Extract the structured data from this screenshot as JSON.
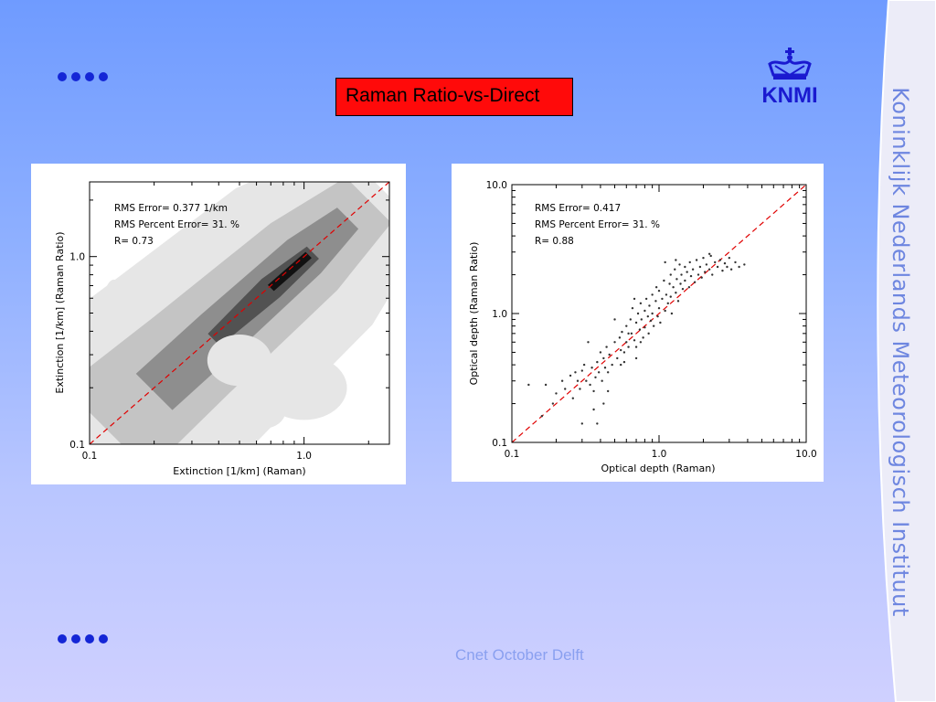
{
  "slide": {
    "title": "Raman Ratio-vs-Direct",
    "footer": "Cnet October Delft",
    "sidebar_text": "Koninklijk Nederlands Meteorologisch Instituut",
    "logo_text": "KNMI",
    "logo_icon": "crown-icon",
    "colors": {
      "title_box": "#ff0a0a",
      "bullets": "#1426d6",
      "sidebar_text": "#6e86e0",
      "footer": "#8aa0f0",
      "logo": "#1a1ad0"
    }
  },
  "chart_data": [
    {
      "type": "heatmap",
      "xlabel": "Extinction [1/km] (Raman)",
      "ylabel": "Extinction [1/km] (Raman Ratio)",
      "xscale": "log",
      "yscale": "log",
      "xlim": [
        0.1,
        2.5
      ],
      "ylim": [
        0.1,
        2.5
      ],
      "xticks": [
        0.1,
        1.0
      ],
      "xtick_labels": [
        "0.1",
        "1.0"
      ],
      "yticks": [
        0.1,
        1.0
      ],
      "ytick_labels": [
        "0.1",
        "1.0"
      ],
      "annotations": [
        "RMS Error=   0.377 1/km",
        "RMS Percent Error=      31. %",
        "R=  0.73"
      ],
      "reference_line": {
        "style": "dashed",
        "color": "#e00000",
        "from": [
          0.1,
          0.1
        ],
        "to": [
          2.5,
          2.5
        ]
      },
      "contour_levels": [
        {
          "shade": "#e6e6e6",
          "center": [
            [
              0.1,
              0.1
            ],
            [
              0.3,
              0.3
            ],
            [
              1.0,
              1.0
            ],
            [
              2.3,
              2.3
            ]
          ],
          "half_width_decades": [
            0.55,
            0.5,
            0.45,
            0.3
          ]
        },
        {
          "shade": "#c4c4c4",
          "center": [
            [
              0.12,
              0.12
            ],
            [
              0.3,
              0.3
            ],
            [
              1.0,
              1.0
            ],
            [
              2.0,
              2.0
            ]
          ],
          "half_width_decades": [
            0.28,
            0.25,
            0.22,
            0.15
          ]
        },
        {
          "shade": "#8e8e8e",
          "center": [
            [
              0.2,
              0.19
            ],
            [
              0.4,
              0.39
            ],
            [
              1.0,
              1.0
            ],
            [
              1.6,
              1.6
            ]
          ],
          "half_width_decades": [
            0.12,
            0.12,
            0.11,
            0.07
          ]
        },
        {
          "shade": "#525252",
          "center": [
            [
              0.38,
              0.36
            ],
            [
              0.7,
              0.68
            ],
            [
              1.1,
              1.05
            ]
          ],
          "half_width_decades": [
            0.04,
            0.06,
            0.04
          ]
        },
        {
          "shade": "#111111",
          "center": [
            [
              0.7,
              0.68
            ],
            [
              1.05,
              1.02
            ]
          ],
          "half_width_decades": [
            0.02,
            0.02
          ]
        }
      ],
      "extra_light_blobs": [
        {
          "x": 0.5,
          "y": 0.28,
          "rx_decades": 0.15,
          "ry_decades": 0.12
        },
        {
          "x": 1.0,
          "y": 0.2,
          "rx_decades": 0.2,
          "ry_decades": 0.15
        },
        {
          "x": 0.65,
          "y": 0.15,
          "rx_decades": 0.1,
          "ry_decades": 0.08
        },
        {
          "x": 0.13,
          "y": 0.55,
          "rx_decades": 0.05,
          "ry_decades": 0.12
        }
      ]
    },
    {
      "type": "scatter",
      "xlabel": "Optical depth (Raman)",
      "ylabel": "Optical depth (Raman Ratio)",
      "xscale": "log",
      "yscale": "log",
      "xlim": [
        0.1,
        10.0
      ],
      "ylim": [
        0.1,
        10.0
      ],
      "xticks": [
        0.1,
        1.0,
        10.0
      ],
      "xtick_labels": [
        "0.1",
        "1.0",
        "10.0"
      ],
      "yticks": [
        0.1,
        1.0,
        10.0
      ],
      "ytick_labels": [
        "0.1",
        "1.0",
        "10.0"
      ],
      "annotations": [
        "RMS Error=    0.417",
        "RMS Percent Error=      31. %",
        "R=   0.88"
      ],
      "reference_line": {
        "style": "dashed",
        "color": "#e00000",
        "from": [
          0.1,
          0.1
        ],
        "to": [
          10.0,
          10.0
        ]
      },
      "points": [
        [
          0.13,
          0.28
        ],
        [
          0.16,
          0.16
        ],
        [
          0.17,
          0.28
        ],
        [
          0.19,
          0.2
        ],
        [
          0.2,
          0.24
        ],
        [
          0.22,
          0.3
        ],
        [
          0.23,
          0.26
        ],
        [
          0.25,
          0.33
        ],
        [
          0.26,
          0.22
        ],
        [
          0.27,
          0.35
        ],
        [
          0.28,
          0.3
        ],
        [
          0.29,
          0.26
        ],
        [
          0.3,
          0.36
        ],
        [
          0.3,
          0.14
        ],
        [
          0.31,
          0.4
        ],
        [
          0.32,
          0.3
        ],
        [
          0.33,
          0.6
        ],
        [
          0.34,
          0.28
        ],
        [
          0.35,
          0.38
        ],
        [
          0.36,
          0.25
        ],
        [
          0.37,
          0.32
        ],
        [
          0.38,
          0.14
        ],
        [
          0.38,
          0.42
        ],
        [
          0.39,
          0.35
        ],
        [
          0.4,
          0.5
        ],
        [
          0.41,
          0.3
        ],
        [
          0.42,
          0.45
        ],
        [
          0.43,
          0.38
        ],
        [
          0.44,
          0.55
        ],
        [
          0.45,
          0.25
        ],
        [
          0.46,
          0.48
        ],
        [
          0.48,
          0.4
        ],
        [
          0.5,
          0.6
        ],
        [
          0.52,
          0.45
        ],
        [
          0.54,
          0.65
        ],
        [
          0.55,
          0.52
        ],
        [
          0.56,
          0.72
        ],
        [
          0.58,
          0.5
        ],
        [
          0.6,
          0.8
        ],
        [
          0.6,
          0.6
        ],
        [
          0.62,
          0.55
        ],
        [
          0.64,
          0.9
        ],
        [
          0.65,
          0.7
        ],
        [
          0.66,
          1.1
        ],
        [
          0.68,
          0.62
        ],
        [
          0.7,
          0.85
        ],
        [
          0.7,
          0.55
        ],
        [
          0.72,
          1.0
        ],
        [
          0.74,
          0.75
        ],
        [
          0.75,
          1.2
        ],
        [
          0.76,
          0.9
        ],
        [
          0.78,
          0.65
        ],
        [
          0.8,
          1.05
        ],
        [
          0.8,
          0.78
        ],
        [
          0.82,
          1.3
        ],
        [
          0.84,
          0.95
        ],
        [
          0.85,
          0.7
        ],
        [
          0.86,
          1.15
        ],
        [
          0.88,
          0.88
        ],
        [
          0.9,
          1.4
        ],
        [
          0.9,
          1.0
        ],
        [
          0.92,
          0.8
        ],
        [
          0.95,
          1.25
        ],
        [
          0.96,
          1.6
        ],
        [
          0.98,
          0.95
        ],
        [
          1.0,
          1.1
        ],
        [
          1.0,
          1.5
        ],
        [
          1.02,
          0.85
        ],
        [
          1.05,
          1.3
        ],
        [
          1.08,
          1.8
        ],
        [
          1.1,
          1.05
        ],
        [
          1.12,
          1.4
        ],
        [
          1.15,
          1.2
        ],
        [
          1.18,
          1.7
        ],
        [
          1.2,
          2.0
        ],
        [
          1.2,
          1.35
        ],
        [
          1.22,
          1.0
        ],
        [
          1.25,
          1.6
        ],
        [
          1.28,
          2.2
        ],
        [
          1.3,
          1.45
        ],
        [
          1.32,
          1.85
        ],
        [
          1.35,
          1.25
        ],
        [
          1.38,
          2.4
        ],
        [
          1.4,
          1.7
        ],
        [
          1.42,
          2.0
        ],
        [
          1.45,
          1.55
        ],
        [
          1.5,
          2.3
        ],
        [
          1.5,
          1.8
        ],
        [
          1.55,
          2.1
        ],
        [
          1.6,
          1.6
        ],
        [
          1.62,
          2.5
        ],
        [
          1.65,
          1.95
        ],
        [
          1.7,
          2.2
        ],
        [
          1.75,
          1.75
        ],
        [
          1.8,
          2.6
        ],
        [
          1.85,
          2.0
        ],
        [
          1.9,
          2.3
        ],
        [
          1.95,
          1.9
        ],
        [
          2.0,
          2.7
        ],
        [
          2.05,
          2.1
        ],
        [
          2.1,
          2.4
        ],
        [
          2.2,
          2.2
        ],
        [
          2.25,
          2.8
        ],
        [
          2.3,
          2.0
        ],
        [
          2.4,
          2.5
        ],
        [
          2.5,
          2.3
        ],
        [
          2.6,
          2.6
        ],
        [
          2.7,
          2.15
        ],
        [
          2.8,
          2.45
        ],
        [
          2.9,
          2.3
        ],
        [
          3.0,
          2.7
        ],
        [
          3.1,
          2.2
        ],
        [
          3.3,
          2.5
        ],
        [
          3.5,
          2.3
        ],
        [
          3.8,
          2.4
        ],
        [
          2.2,
          2.9
        ],
        [
          1.3,
          2.6
        ],
        [
          1.1,
          2.5
        ],
        [
          0.68,
          1.3
        ],
        [
          0.5,
          0.9
        ],
        [
          0.42,
          0.2
        ],
        [
          0.36,
          0.18
        ],
        [
          0.45,
          0.35
        ],
        [
          0.55,
          0.4
        ],
        [
          0.62,
          0.7
        ],
        [
          0.58,
          0.42
        ],
        [
          0.7,
          0.45
        ],
        [
          0.75,
          0.6
        ]
      ]
    }
  ]
}
